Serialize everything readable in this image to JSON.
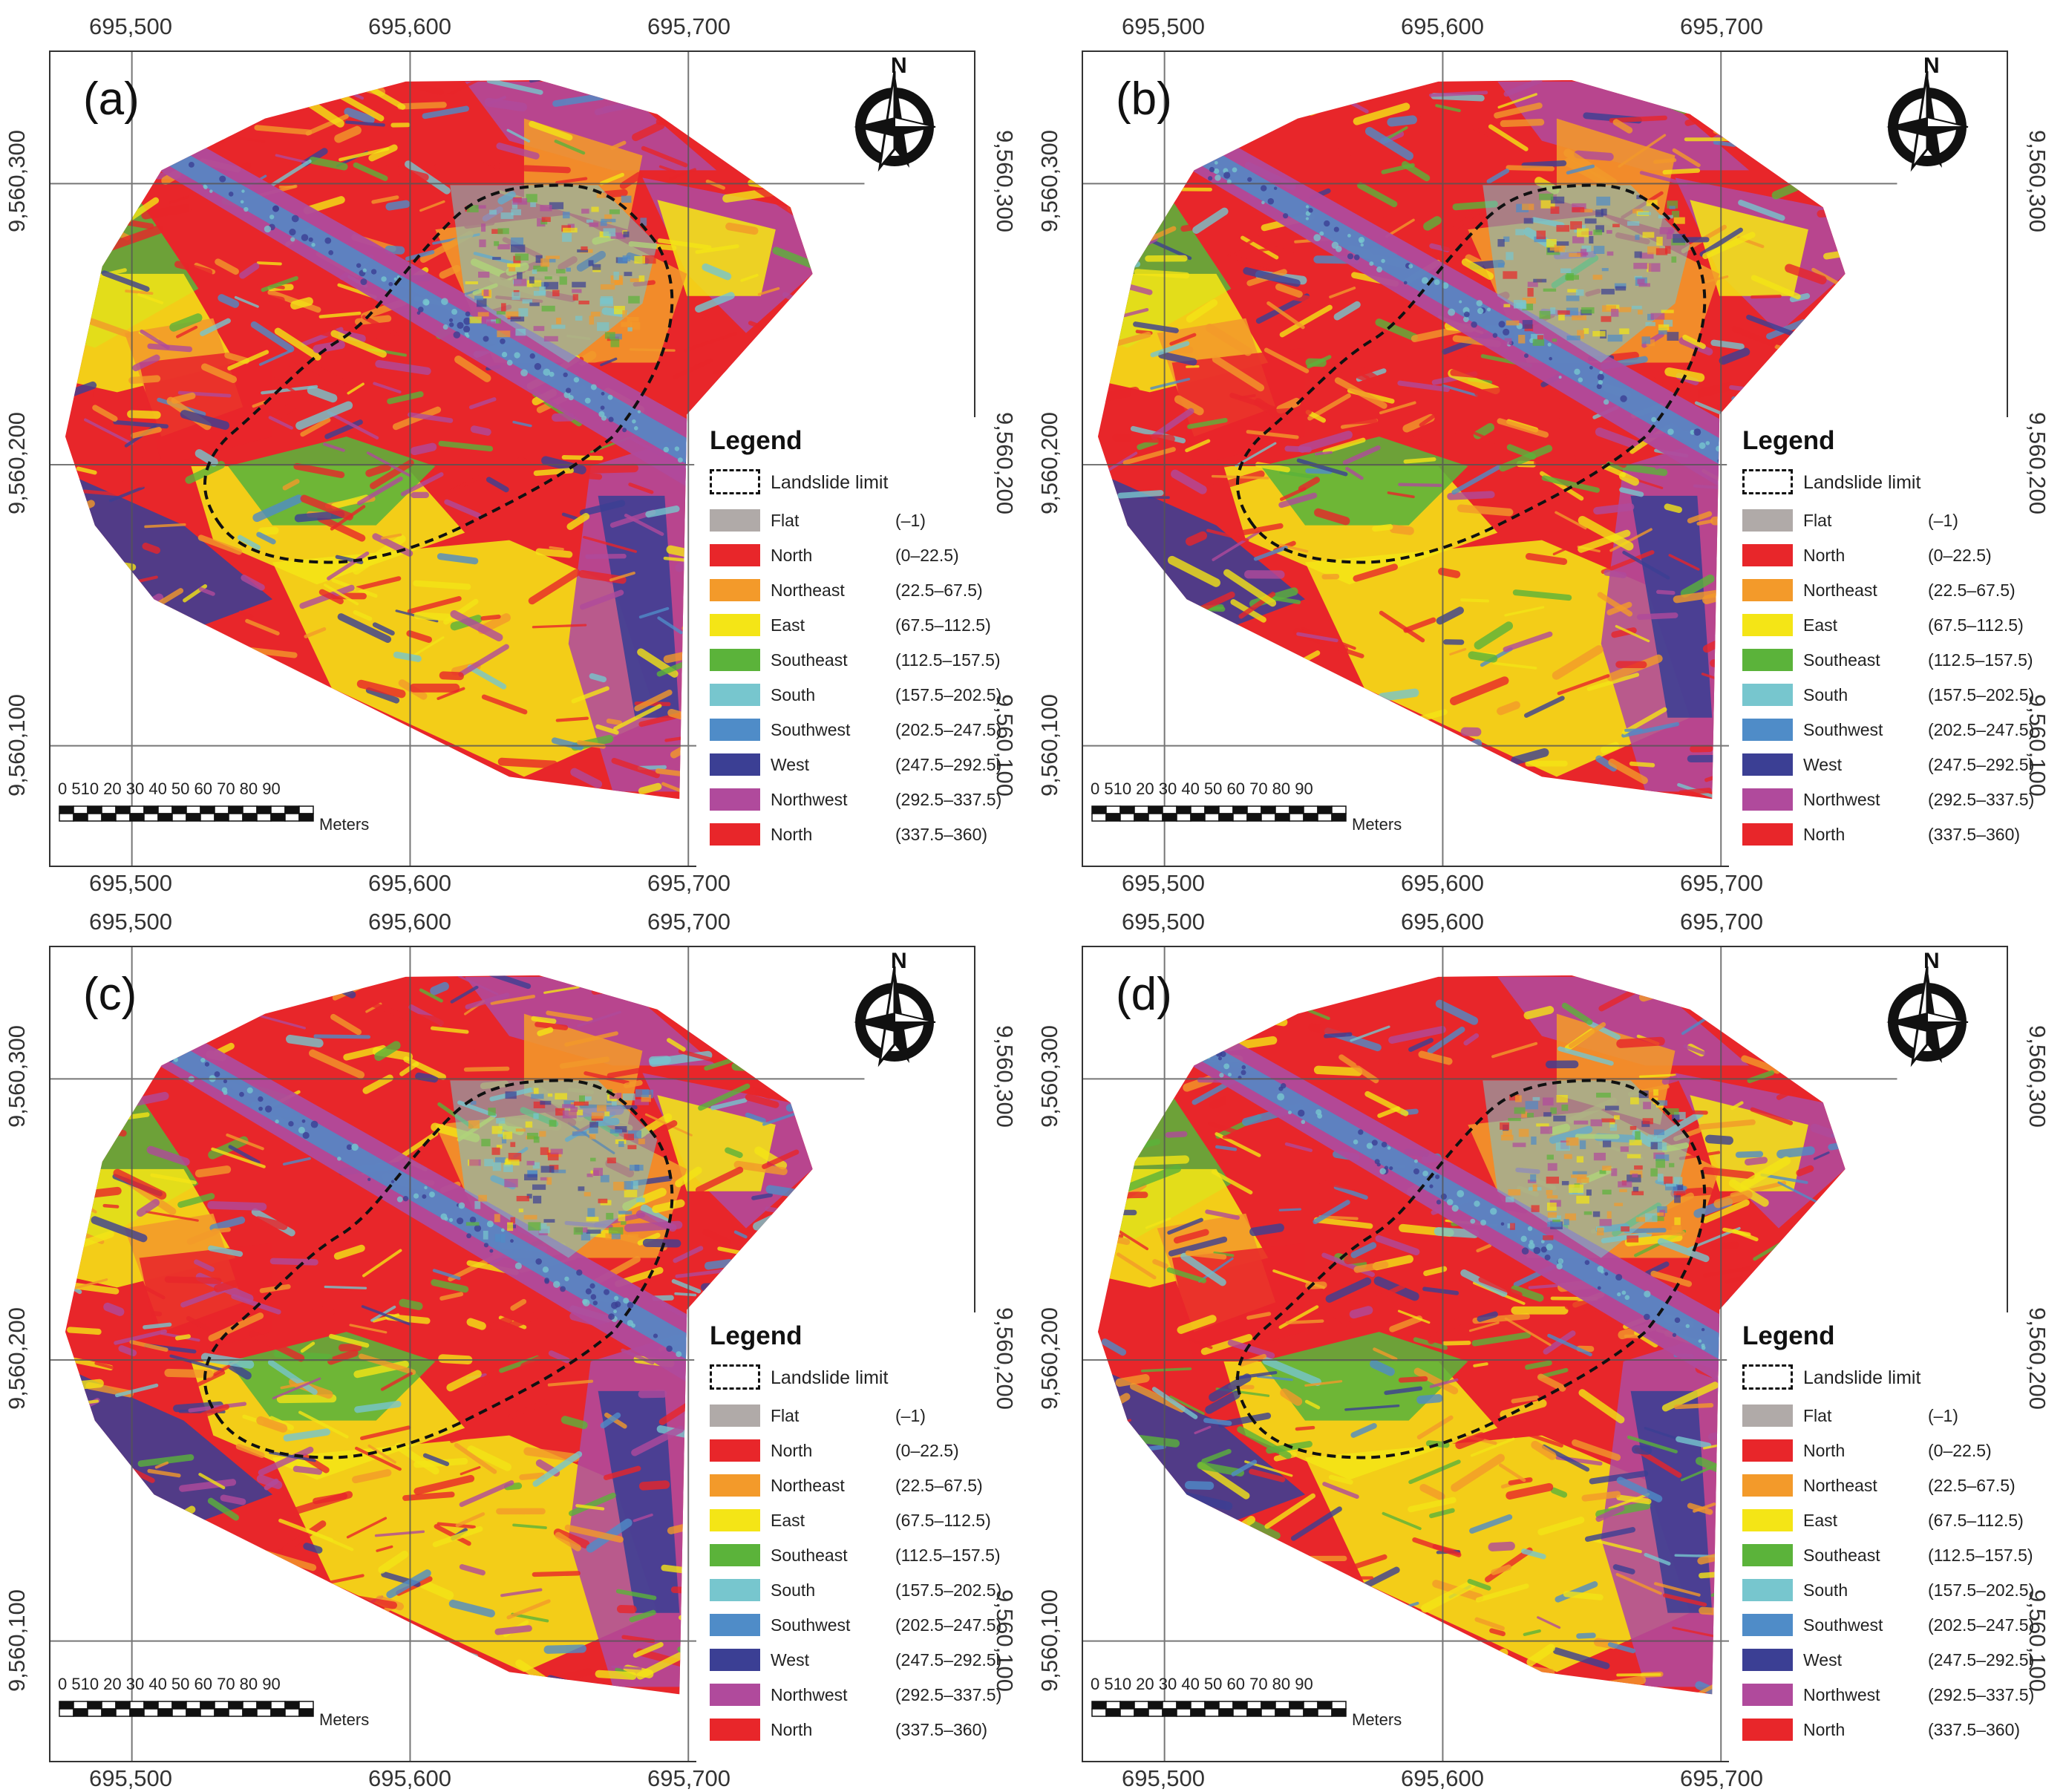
{
  "axes": {
    "x_ticks": [
      "695,500",
      "695,600",
      "695,700"
    ],
    "y_ticks": [
      "9,560,300",
      "9,560,200",
      "9,560,100"
    ]
  },
  "north_arrow": {
    "icon": "north-arrow-compass-icon",
    "letter": "N"
  },
  "scale_bar": {
    "ticks": "0 510 20 30 40 50 60 70 80 90",
    "unit": "Meters"
  },
  "legend": {
    "title": "Legend",
    "limit_label": "Landslide limit",
    "items": [
      {
        "name": "Flat",
        "range": "(–1)",
        "color": "#b0aaa8"
      },
      {
        "name": "North",
        "range": "(0–22.5)",
        "color": "#e8262a"
      },
      {
        "name": "Northeast",
        "range": "(22.5–67.5)",
        "color": "#f39a2a"
      },
      {
        "name": "East",
        "range": "(67.5–112.5)",
        "color": "#f4e516"
      },
      {
        "name": "Southeast",
        "range": "(112.5–157.5)",
        "color": "#5bb33a"
      },
      {
        "name": "South",
        "range": "(157.5–202.5)",
        "color": "#77c6ce"
      },
      {
        "name": "Southwest",
        "range": "(202.5–247.5)",
        "color": "#4f8cc8"
      },
      {
        "name": "West",
        "range": "(247.5–292.5)",
        "color": "#3b3f94"
      },
      {
        "name": "Northwest",
        "range": "(292.5–337.5)",
        "color": "#b04a9c"
      },
      {
        "name": "North",
        "range": "(337.5–360)",
        "color": "#e8262a"
      }
    ]
  },
  "panels": [
    {
      "label": "(a)"
    },
    {
      "label": "(b)"
    },
    {
      "label": "(c)"
    },
    {
      "label": "(d)"
    }
  ]
}
